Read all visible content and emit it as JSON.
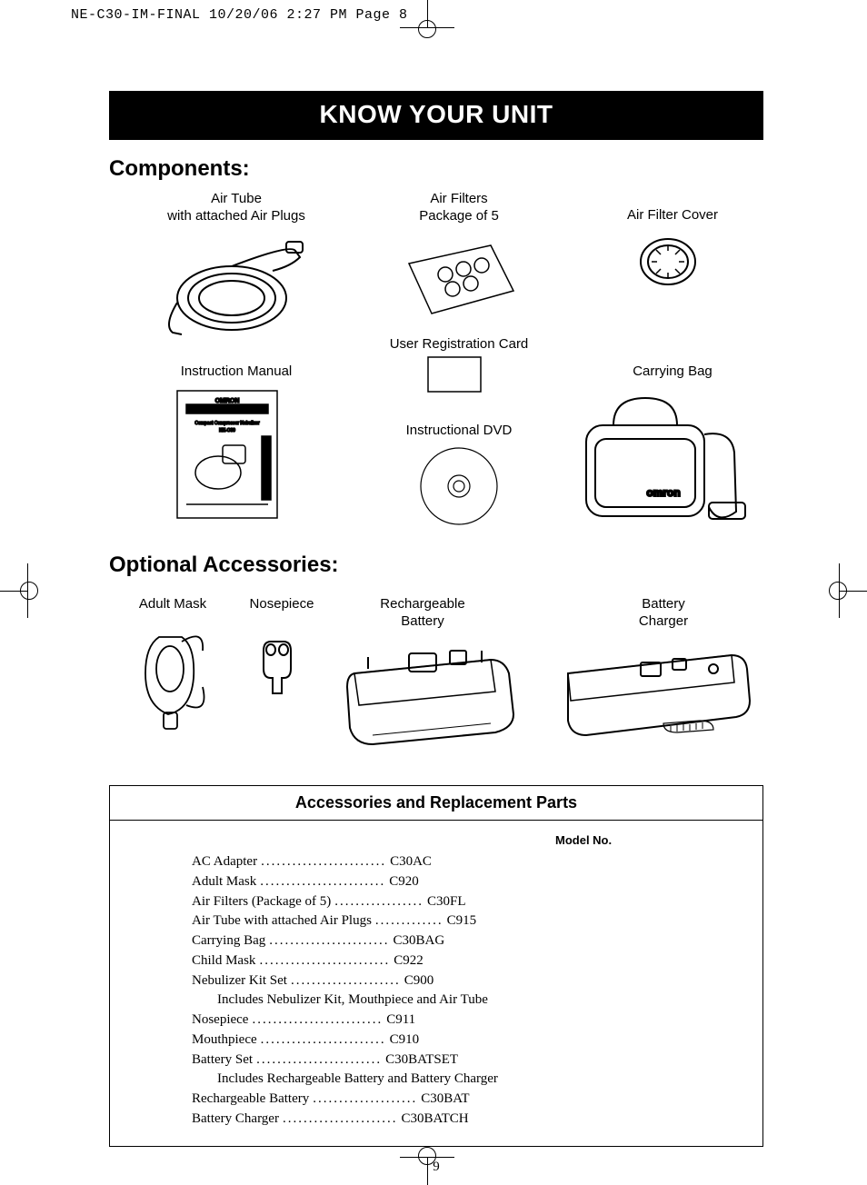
{
  "slug": "NE-C30-IM-FINAL  10/20/06  2:27 PM  Page 8",
  "title_bar": "KNOW YOUR UNIT",
  "sections": {
    "components": "Components:",
    "optional": "Optional Accessories:"
  },
  "labels": {
    "air_tube_1": "Air Tube",
    "air_tube_2": "with attached Air Plugs",
    "air_filters_1": "Air Filters",
    "air_filters_2": "Package of 5",
    "air_filter_cover": "Air Filter Cover",
    "instruction_manual": "Instruction Manual",
    "user_reg_card": "User Registration Card",
    "carrying_bag": "Carrying Bag",
    "instructional_dvd": "Instructional DVD",
    "adult_mask": "Adult Mask",
    "nosepiece": "Nosepiece",
    "recharge_1": "Rechargeable",
    "recharge_2": "Battery",
    "charger_1": "Battery",
    "charger_2": "Charger",
    "bag_brand": "omron"
  },
  "parts": {
    "title": "Accessories and Replacement Parts",
    "model_header": "Model No.",
    "rows": [
      {
        "name": "AC Adapter",
        "model": "C30AC",
        "dots": 24
      },
      {
        "name": "Adult Mask",
        "model": "C920",
        "dots": 24
      },
      {
        "name": "Air Filters (Package of 5)",
        "model": "C30FL",
        "dots": 17
      },
      {
        "name": "Air Tube with attached Air Plugs",
        "model": "C915",
        "dots": 13
      },
      {
        "name": "Carrying Bag",
        "model": "C30BAG",
        "dots": 23
      },
      {
        "name": "Child Mask",
        "model": "C922",
        "dots": 25
      },
      {
        "name": "Nebulizer Kit Set",
        "model": "C900",
        "dots": 21,
        "note": "Includes Nebulizer Kit, Mouthpiece and Air Tube"
      },
      {
        "name": "Nosepiece",
        "model": "C911",
        "dots": 25
      },
      {
        "name": "Mouthpiece",
        "model": "C910",
        "dots": 24
      },
      {
        "name": "Battery Set",
        "model": "C30BATSET",
        "dots": 24,
        "note": "Includes Rechargeable Battery and Battery Charger"
      },
      {
        "name": "Rechargeable Battery",
        "model": "C30BAT",
        "dots": 20
      },
      {
        "name": "Battery Charger",
        "model": "C30BATCH",
        "dots": 22
      }
    ]
  },
  "page_number": "9",
  "colors": {
    "black": "#000000",
    "white": "#ffffff"
  }
}
